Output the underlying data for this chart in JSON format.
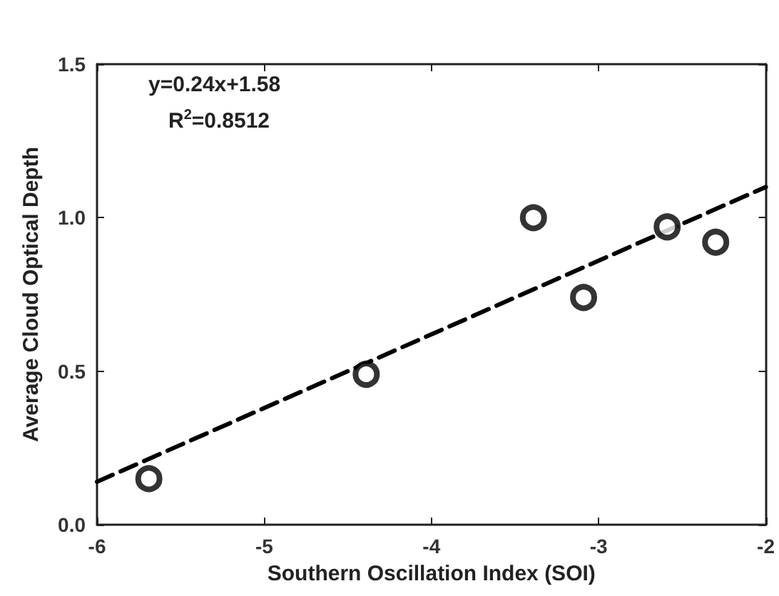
{
  "chart_data": {
    "type": "scatter",
    "xlabel": "Southern Oscillation Index (SOI)",
    "ylabel": "Average Cloud Optical Depth",
    "annotations": [
      "y=0.24x+1.58",
      "R$^{2}$=0.8512"
    ],
    "series": [
      {
        "color": "#000000",
        "marker": "circle",
        "x": [
          -5.69,
          -4.39,
          -3.39,
          -3.09,
          -2.59,
          -2.3
        ],
        "values": [
          0.15,
          0.49,
          1.0,
          0.74,
          0.97,
          0.92
        ]
      },
      {
        "type": "line",
        "color": "#000000",
        "line_style": "dashed",
        "marker": "none",
        "x": [
          -6,
          -2
        ],
        "values": [
          0.14,
          1.1
        ]
      }
    ],
    "xlim": [
      -6,
      -2
    ],
    "xticks": [
      -6,
      -5,
      -4,
      -3,
      -2
    ],
    "ylim": [
      0,
      1.5
    ],
    "yticks": [
      {
        "value": 0,
        "label": "0.0"
      },
      {
        "value": 0.5,
        "label": "0.5"
      },
      {
        "value": 1,
        "label": "1.0"
      },
      {
        "value": 1.5,
        "label": "1.5"
      }
    ],
    "grid": false
  }
}
